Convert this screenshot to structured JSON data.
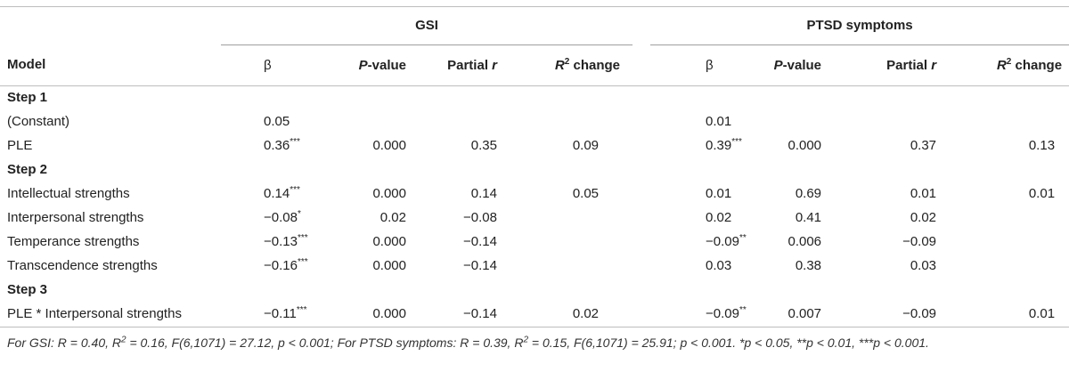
{
  "groups": {
    "gsi": "GSI",
    "ptsd": "PTSD symptoms"
  },
  "headers": {
    "model": "Model",
    "beta": "β",
    "pvalue_italic": "P",
    "pvalue_rest": "-value",
    "partial_r_text": "Partial ",
    "partial_r_italic": "r",
    "r2_italic": "R",
    "r2_sup": "2",
    "r2_rest": " change"
  },
  "rows": [
    {
      "type": "step",
      "label": "Step 1"
    },
    {
      "type": "data",
      "label": "(Constant)",
      "gsi": {
        "beta": "0.05",
        "sig": "",
        "p": "",
        "pr": "",
        "r2": ""
      },
      "ptsd": {
        "beta": "0.01",
        "sig": "",
        "p": "",
        "pr": "",
        "r2": ""
      }
    },
    {
      "type": "data",
      "label": "PLE",
      "gsi": {
        "beta": "0.36",
        "sig": "***",
        "p": "0.000",
        "pr": "0.35",
        "r2": "0.09"
      },
      "ptsd": {
        "beta": "0.39",
        "sig": "***",
        "p": "0.000",
        "pr": "0.37",
        "r2": "0.13"
      }
    },
    {
      "type": "step",
      "label": "Step 2"
    },
    {
      "type": "data",
      "label": "Intellectual strengths",
      "gsi": {
        "beta": "0.14",
        "sig": "***",
        "p": "0.000",
        "pr": "0.14",
        "r2": "0.05"
      },
      "ptsd": {
        "beta": "0.01",
        "sig": "",
        "p": "0.69",
        "pr": "0.01",
        "r2": "0.01"
      }
    },
    {
      "type": "data",
      "label": "Interpersonal strengths",
      "gsi": {
        "beta": "−0.08",
        "sig": "*",
        "p": "0.02",
        "pr": "−0.08",
        "r2": ""
      },
      "ptsd": {
        "beta": "0.02",
        "sig": "",
        "p": "0.41",
        "pr": "0.02",
        "r2": ""
      }
    },
    {
      "type": "data",
      "label": "Temperance strengths",
      "gsi": {
        "beta": "−0.13",
        "sig": "***",
        "p": "0.000",
        "pr": "−0.14",
        "r2": ""
      },
      "ptsd": {
        "beta": "−0.09",
        "sig": "**",
        "p": "0.006",
        "pr": "−0.09",
        "r2": ""
      }
    },
    {
      "type": "data",
      "label": "Transcendence strengths",
      "gsi": {
        "beta": "−0.16",
        "sig": "***",
        "p": "0.000",
        "pr": "−0.14",
        "r2": ""
      },
      "ptsd": {
        "beta": "0.03",
        "sig": "",
        "p": "0.38",
        "pr": "0.03",
        "r2": ""
      }
    },
    {
      "type": "step",
      "label": "Step 3"
    },
    {
      "type": "data",
      "label": "PLE * Interpersonal strengths",
      "gsi": {
        "beta": "−0.11",
        "sig": "***",
        "p": "0.000",
        "pr": "−0.14",
        "r2": "0.02"
      },
      "ptsd": {
        "beta": "−0.09",
        "sig": "**",
        "p": "0.007",
        "pr": "−0.09",
        "r2": "0.01"
      }
    }
  ],
  "footnote": "For GSI: R = 0.40, R2 = 0.16, F(6,1071) = 27.12, p < 0.001; For PTSD symptoms: R = 0.39, R2 = 0.15, F(6,1071) = 25.91; p < 0.001. *p < 0.05, **p < 0.01, ***p < 0.001.",
  "footnote_parts": {
    "a": "For GSI: R = 0.40, R",
    "b": "2",
    "c": " = 0.16, F(6,1071) = 27.12, p < 0.001; For PTSD symptoms: R = 0.39, R",
    "d": "2",
    "e": " = 0.15, F(6,1071) = 25.91; p < 0.001. *p < 0.05, **p < 0.01, ***p < 0.001."
  }
}
